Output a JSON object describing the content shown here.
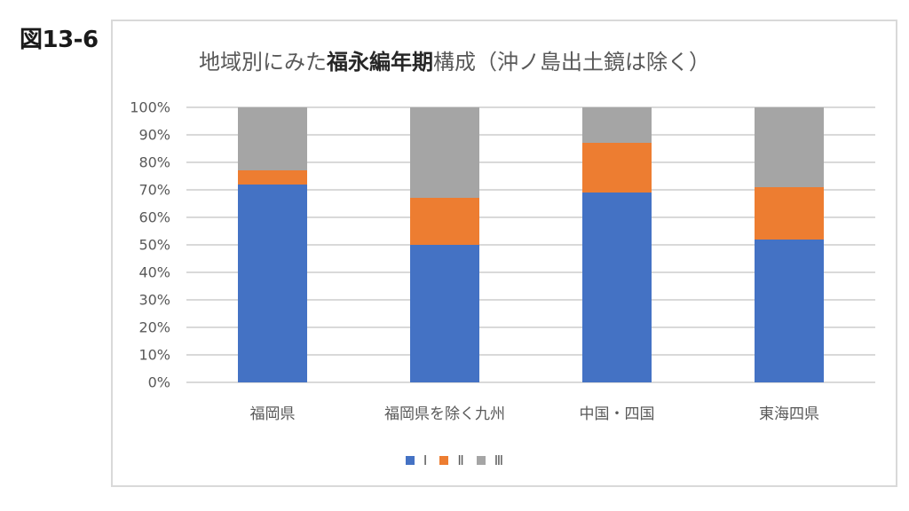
{
  "figure_label": "図13-6",
  "title": {
    "prefix": "地域別にみた",
    "bold": "福永編年期",
    "suffix": "構成（沖ノ島出土鏡は除く）"
  },
  "colors": {
    "I": "#4472c4",
    "II": "#ed7d31",
    "III": "#a5a5a5",
    "grid": "#d9d9d9",
    "text": "#595959"
  },
  "y_ticks": [
    "0%",
    "10%",
    "20%",
    "30%",
    "40%",
    "50%",
    "60%",
    "70%",
    "80%",
    "90%",
    "100%"
  ],
  "categories": [
    "福岡県",
    "福岡県を除く九州",
    "中国・四国",
    "東海四県"
  ],
  "legend": [
    {
      "label": "Ⅰ",
      "color": "#4472c4"
    },
    {
      "label": "Ⅱ",
      "color": "#ed7d31"
    },
    {
      "label": "Ⅲ",
      "color": "#a5a5a5"
    }
  ],
  "chart_data": {
    "type": "bar",
    "stacked": true,
    "percent": true,
    "title": "地域別にみた福永編年期構成（沖ノ島出土鏡は除く）",
    "xlabel": "",
    "ylabel": "",
    "ylim": [
      0,
      100
    ],
    "y_tick_format": "%",
    "grid": true,
    "legend_position": "bottom",
    "categories": [
      "福岡県",
      "福岡県を除く九州",
      "中国・四国",
      "東海四県"
    ],
    "series": [
      {
        "name": "Ⅰ",
        "color": "#4472c4",
        "values": [
          72,
          50,
          69,
          52
        ]
      },
      {
        "name": "Ⅱ",
        "color": "#ed7d31",
        "values": [
          5,
          17,
          18,
          19
        ]
      },
      {
        "name": "Ⅲ",
        "color": "#a5a5a5",
        "values": [
          23,
          33,
          13,
          29
        ]
      }
    ]
  }
}
